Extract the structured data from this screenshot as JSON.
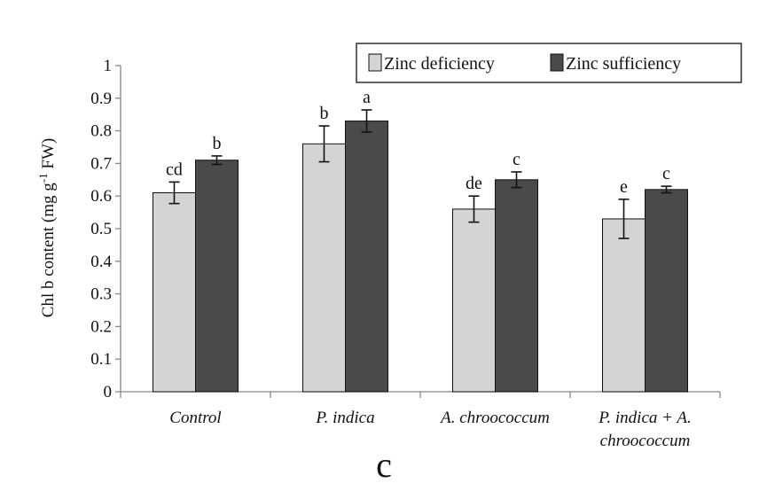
{
  "panel_label": "c",
  "colors": {
    "zinc_deficiency": "#d4d4d4",
    "zinc_sufficiency": "#4a4a4a",
    "axis": "#888888",
    "edge": "#111111"
  },
  "chart_data": {
    "type": "bar",
    "title": "",
    "xlabel": "",
    "ylabel": {
      "prefix": "Chl b content (mg g",
      "superscript": "-1",
      "suffix": " FW)"
    },
    "ylim": [
      0,
      1
    ],
    "yticks": [
      "0",
      "0.1",
      "0.2",
      "0.3",
      "0.4",
      "0.5",
      "0.6",
      "0.7",
      "0.8",
      "0.9",
      "1"
    ],
    "grid": false,
    "legend_position": "top-right",
    "categories": [
      [
        "Control"
      ],
      [
        "P. indica"
      ],
      [
        "A. chroococcum"
      ],
      [
        "P. indica + A.",
        "chroococcum"
      ]
    ],
    "series": [
      {
        "name": "Zinc deficiency",
        "values": [
          0.61,
          0.76,
          0.56,
          0.53
        ],
        "errors": [
          0.033,
          0.055,
          0.04,
          0.06
        ],
        "letters": [
          "cd",
          "b",
          "de",
          "e"
        ]
      },
      {
        "name": "Zinc sufficiency",
        "values": [
          0.71,
          0.83,
          0.65,
          0.62
        ],
        "errors": [
          0.013,
          0.034,
          0.024,
          0.01
        ],
        "letters": [
          "b",
          "a",
          "c",
          "c"
        ]
      }
    ]
  }
}
